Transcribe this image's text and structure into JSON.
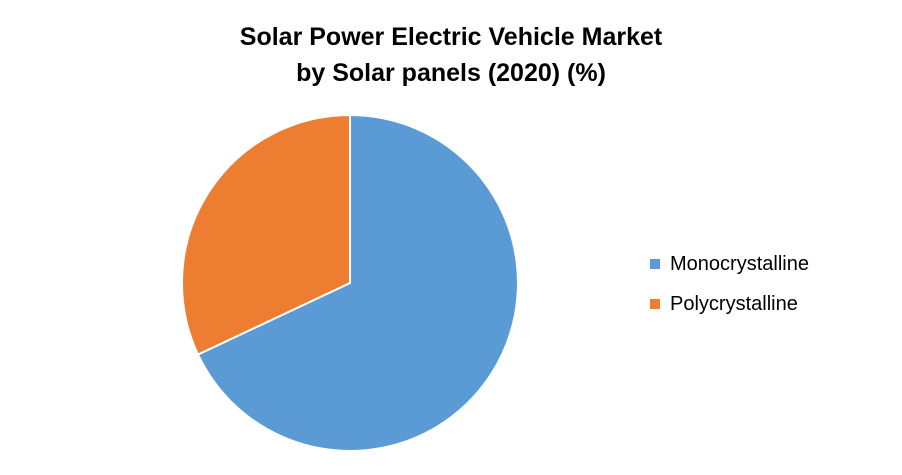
{
  "chart_data": {
    "type": "pie",
    "title_line1": "Solar Power Electric Vehicle Market",
    "title_line2": "by Solar panels (2020) (%)",
    "categories": [
      "Monocrystalline",
      "Polycrystalline"
    ],
    "values": [
      68,
      32
    ],
    "colors": [
      "#5b9bd5",
      "#ed7d31"
    ],
    "legend_position": "right"
  }
}
